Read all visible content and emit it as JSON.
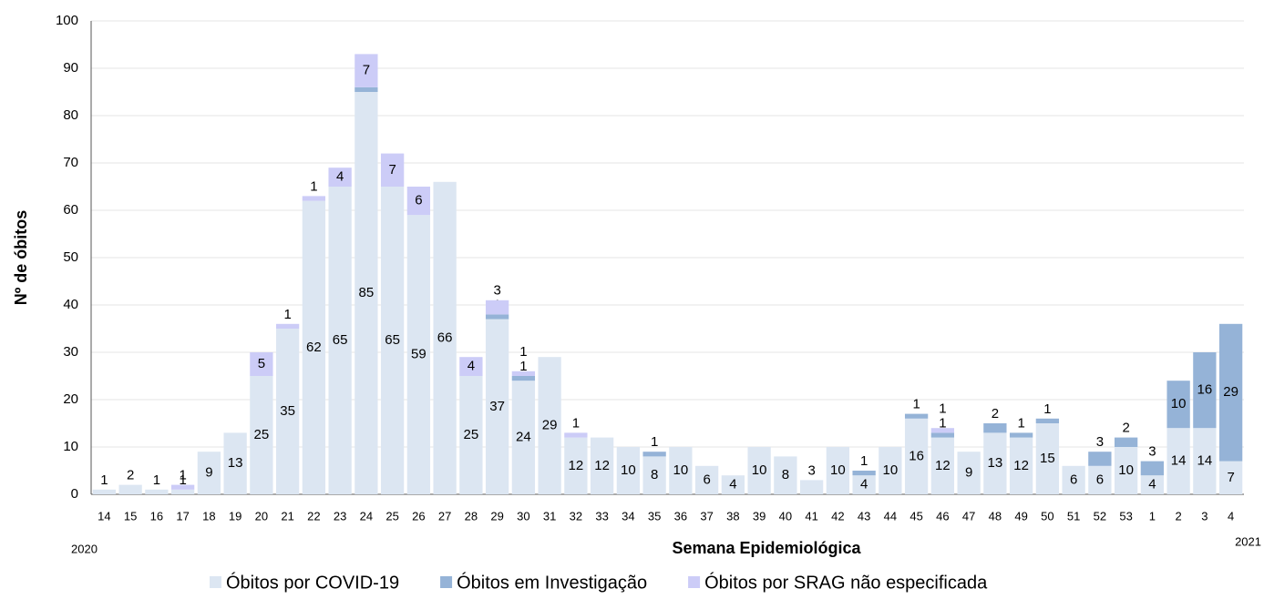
{
  "chart_data": {
    "type": "stacked_bar",
    "x_label": "Semana Epidemiológica",
    "y_label": "Nº de óbitos",
    "year_start": "2020",
    "year_end": "2021",
    "categories": [
      "14",
      "15",
      "16",
      "17",
      "18",
      "19",
      "20",
      "21",
      "22",
      "23",
      "24",
      "25",
      "26",
      "27",
      "28",
      "29",
      "30",
      "31",
      "32",
      "33",
      "34",
      "35",
      "36",
      "37",
      "38",
      "39",
      "40",
      "41",
      "42",
      "43",
      "44",
      "45",
      "46",
      "47",
      "48",
      "49",
      "50",
      "51",
      "52",
      "53",
      "1",
      "2",
      "3",
      "4"
    ],
    "series": [
      {
        "name": "Óbitos por COVID-19",
        "color": "#dce6f2",
        "values": [
          1,
          2,
          1,
          1,
          9,
          13,
          25,
          35,
          62,
          65,
          85,
          65,
          59,
          66,
          25,
          37,
          24,
          29,
          12,
          12,
          10,
          8,
          10,
          6,
          4,
          10,
          8,
          3,
          10,
          4,
          10,
          16,
          12,
          9,
          13,
          12,
          15,
          6,
          6,
          10,
          4,
          14,
          14,
          7
        ]
      },
      {
        "name": "Óbitos em Investigação",
        "color": "#95b3d7",
        "values": [
          null,
          null,
          null,
          null,
          null,
          null,
          null,
          null,
          null,
          null,
          1,
          null,
          null,
          null,
          null,
          1,
          1,
          null,
          null,
          null,
          null,
          1,
          null,
          null,
          null,
          null,
          null,
          null,
          null,
          1,
          null,
          1,
          1,
          null,
          2,
          1,
          1,
          null,
          3,
          2,
          3,
          10,
          16,
          29
        ]
      },
      {
        "name": "Óbitos por SRAG não especificada",
        "color": "#ccccf7",
        "values": [
          null,
          null,
          null,
          1,
          null,
          null,
          5,
          1,
          1,
          4,
          7,
          7,
          6,
          null,
          4,
          3,
          1,
          null,
          1,
          null,
          null,
          null,
          null,
          null,
          null,
          null,
          null,
          null,
          null,
          null,
          null,
          null,
          1,
          null,
          null,
          null,
          null,
          null,
          null,
          null,
          null,
          null,
          null,
          null
        ]
      }
    ],
    "ylim": [
      0,
      100
    ],
    "yticks": [
      0,
      10,
      20,
      30,
      40,
      50,
      60,
      70,
      80,
      90,
      100
    ],
    "grid": true
  }
}
